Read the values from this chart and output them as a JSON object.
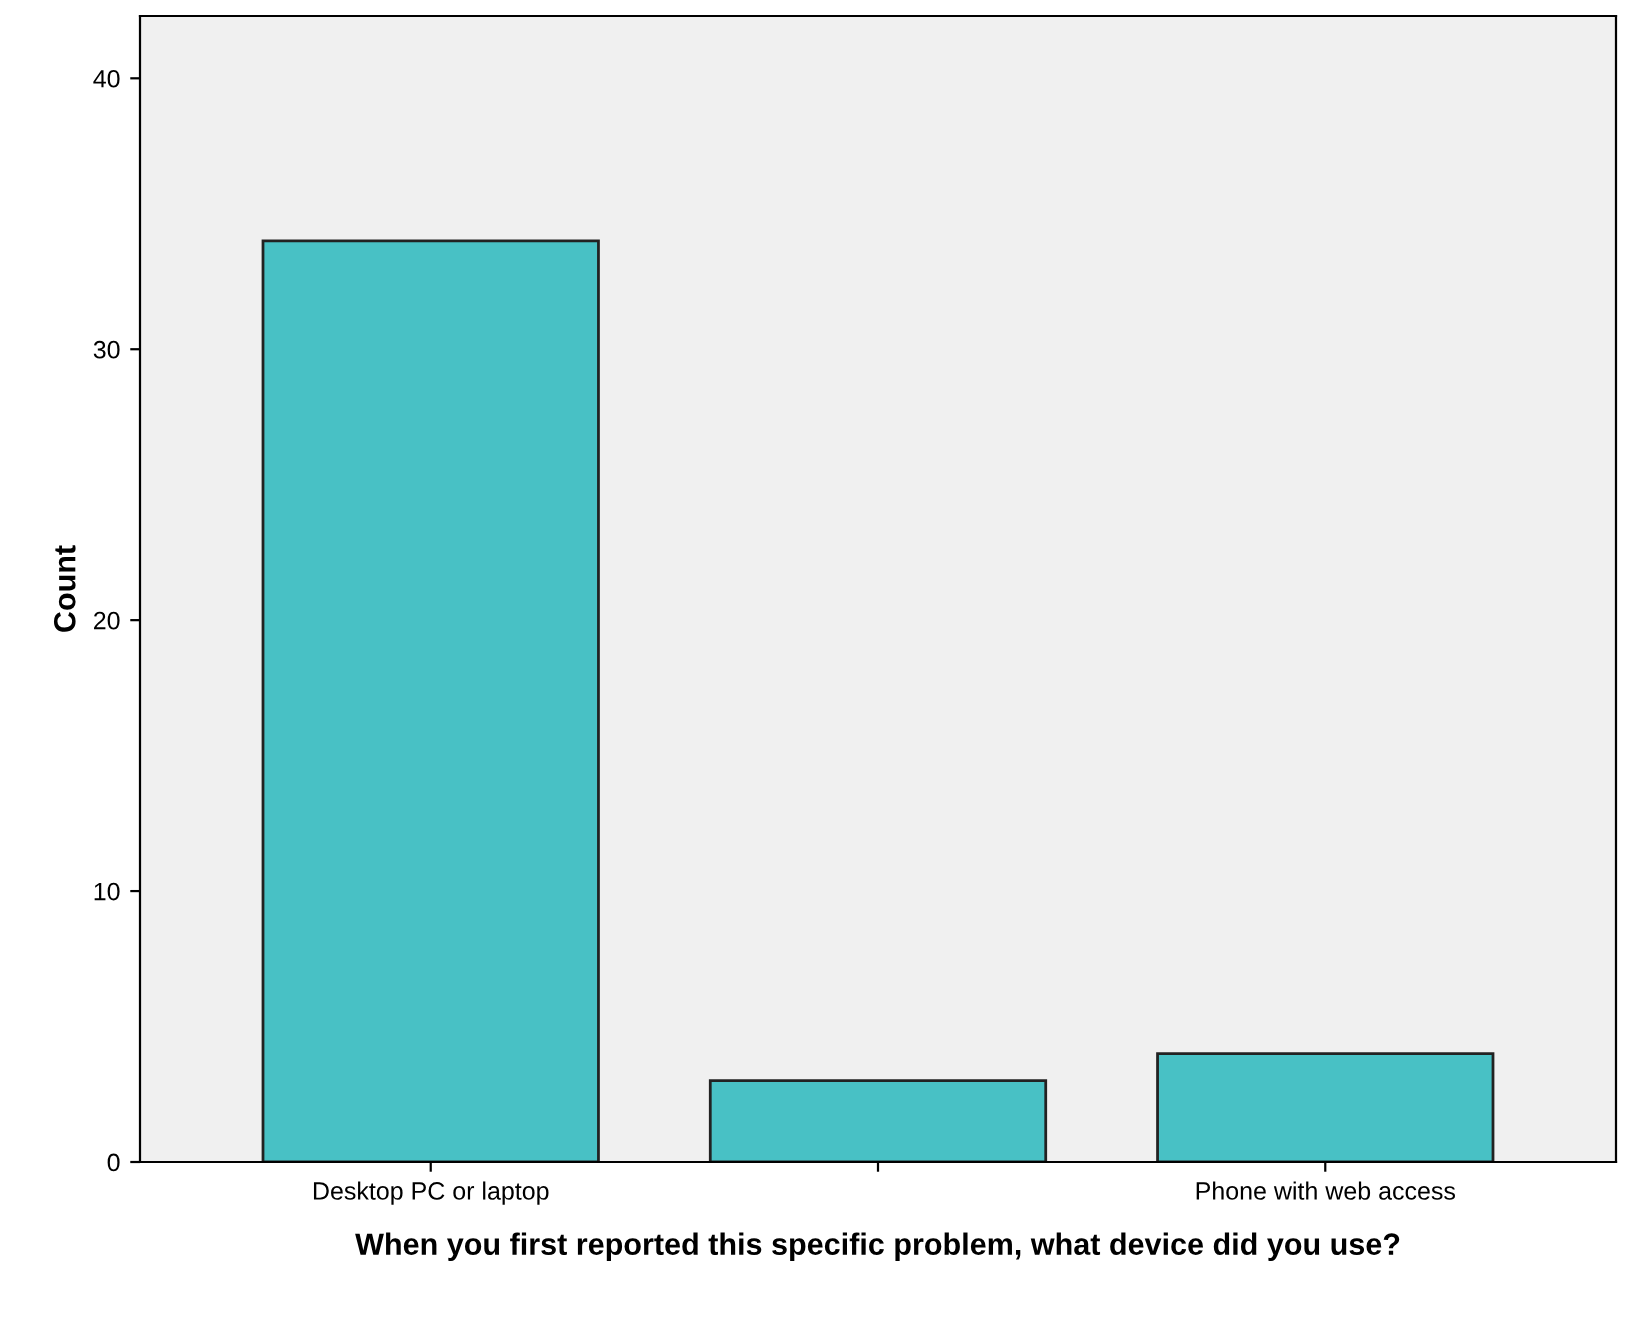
{
  "chart_data": {
    "type": "bar",
    "categories": [
      "Desktop PC or laptop",
      null,
      "Phone with web access"
    ],
    "values": [
      34,
      3,
      4
    ],
    "color": "#48c1c5",
    "ylabel": "Count",
    "xlabel": "When you first reported this specific problem, what device did you use?",
    "ylim": [
      0,
      42.3
    ],
    "yticks": [
      0,
      10,
      20,
      30,
      40
    ],
    "grid": false
  }
}
